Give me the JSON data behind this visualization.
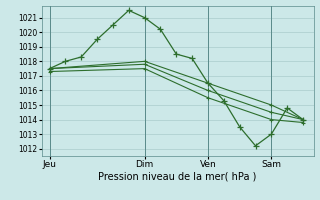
{
  "background_color": "#cce8e8",
  "grid_color": "#aacccc",
  "line_color": "#2d6e2d",
  "xlabel": "Pression niveau de la mer( hPa )",
  "ylim": [
    1011.5,
    1021.8
  ],
  "yticks": [
    1012,
    1013,
    1014,
    1015,
    1016,
    1017,
    1018,
    1019,
    1020,
    1021
  ],
  "xtick_labels": [
    "Jeu",
    "Dim",
    "Ven",
    "Sam"
  ],
  "xtick_positions": [
    0,
    36,
    60,
    84
  ],
  "vline_positions": [
    0,
    36,
    60,
    84
  ],
  "xlim": [
    -3,
    100
  ],
  "series0": {
    "x": [
      0,
      6,
      12,
      18,
      24,
      30,
      36,
      42,
      48,
      54,
      60,
      66,
      72,
      78,
      84,
      90,
      96
    ],
    "y": [
      1017.5,
      1018.0,
      1018.3,
      1019.5,
      1020.5,
      1021.5,
      1021.0,
      1020.2,
      1018.5,
      1018.2,
      1016.5,
      1015.3,
      1013.5,
      1012.2,
      1013.0,
      1014.8,
      1014.0
    ]
  },
  "series1": {
    "x": [
      0,
      36,
      60,
      84,
      96
    ],
    "y": [
      1017.5,
      1018.0,
      1016.5,
      1015.0,
      1014.0
    ]
  },
  "series2": {
    "x": [
      0,
      36,
      60,
      84,
      96
    ],
    "y": [
      1017.5,
      1017.8,
      1016.0,
      1014.5,
      1014.0
    ]
  },
  "series3": {
    "x": [
      0,
      36,
      60,
      84,
      96
    ],
    "y": [
      1017.3,
      1017.5,
      1015.5,
      1014.0,
      1013.8
    ]
  }
}
